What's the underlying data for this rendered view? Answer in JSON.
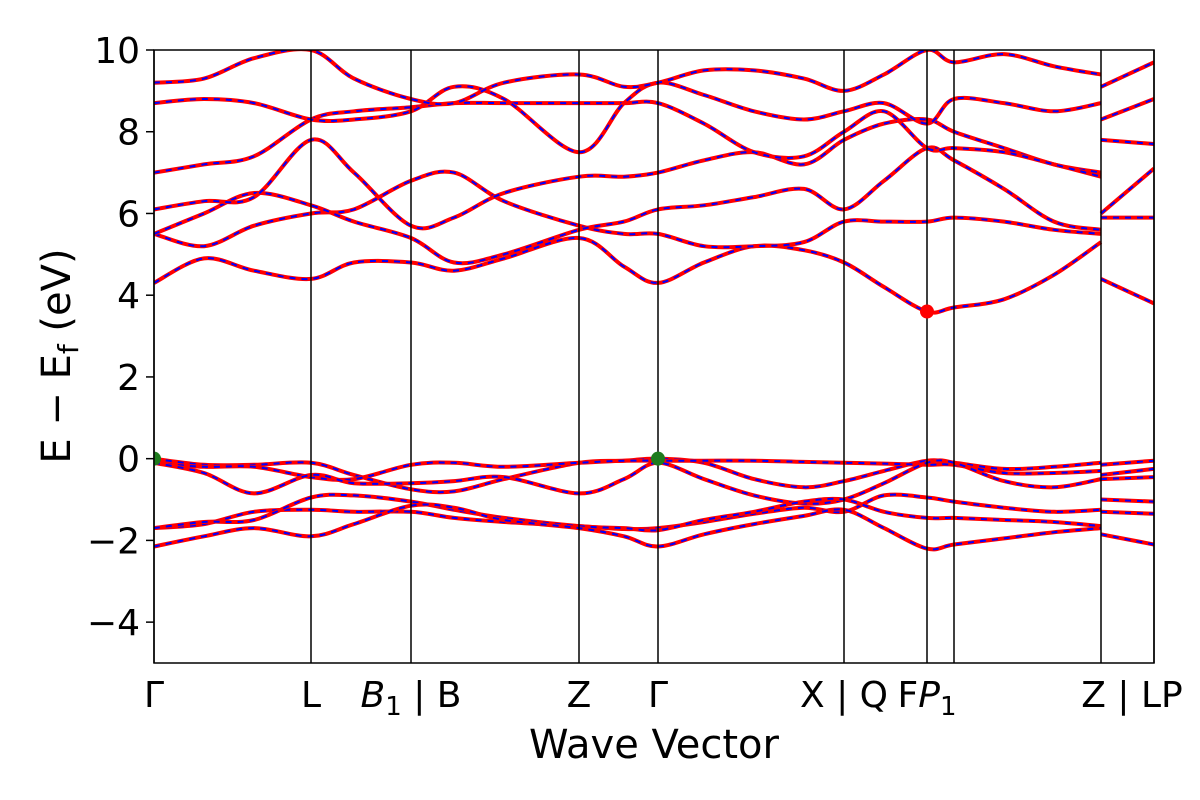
{
  "chart_data": {
    "type": "line",
    "xlabel": "Wave Vector",
    "ylabel": "E − E_f (eV)",
    "ylabel_main": "E − E",
    "ylabel_sub": "f",
    "ylabel_tail": " (eV)",
    "ylim": [
      -5,
      10
    ],
    "yticks": [
      -4,
      -2,
      0,
      2,
      4,
      6,
      8,
      10
    ],
    "xlim": [
      0,
      1
    ],
    "grid": false,
    "legend": "none",
    "kpoints": [
      {
        "x": 0.0,
        "label": "Γ"
      },
      {
        "x": 0.157,
        "label": "L"
      },
      {
        "x": 0.257,
        "label": "B1 | B",
        "sym": "B",
        "sub": "1",
        "tail": " | B"
      },
      {
        "x": 0.425,
        "label": "Z"
      },
      {
        "x": 0.504,
        "label": "Γ"
      },
      {
        "x": 0.69,
        "label": "X | Q"
      },
      {
        "x": 0.773,
        "label": "FP1",
        "pre": "F",
        "sym": "P",
        "sub": "1"
      },
      {
        "x": 0.8,
        "label": ""
      },
      {
        "x": 0.947,
        "label": "Z | LP",
        "label_x": 0.978
      },
      {
        "x": 1.0,
        "label": ""
      }
    ],
    "styles": {
      "line_color": "#ff0000",
      "dash_color": "#0000ff"
    },
    "markers": [
      {
        "x": 0.0,
        "y": 0.0,
        "color": "#1e7b1e",
        "role": "VBM"
      },
      {
        "x": 0.504,
        "y": 0.0,
        "color": "#1e7b1e",
        "role": "VBM"
      },
      {
        "x": 0.773,
        "y": 3.6,
        "color": "#ff0000",
        "role": "CBM"
      }
    ],
    "series": [
      {
        "x": [
          0,
          0.05,
          0.1,
          0.157,
          0.2,
          0.257,
          0.3,
          0.35,
          0.425,
          0.47,
          0.504,
          0.55,
          0.6,
          0.65,
          0.69,
          0.73,
          0.773,
          0.8,
          0.85,
          0.9,
          0.947
        ],
        "y": [
          4.3,
          4.9,
          4.6,
          4.4,
          4.8,
          4.8,
          4.6,
          4.9,
          5.4,
          4.7,
          4.3,
          4.8,
          5.2,
          5.1,
          4.8,
          4.2,
          3.6,
          3.7,
          3.9,
          4.5,
          5.3
        ]
      },
      {
        "x": [
          0.947,
          1.0
        ],
        "y": [
          4.4,
          3.8
        ]
      },
      {
        "x": [
          0,
          0.05,
          0.1,
          0.157,
          0.2,
          0.257,
          0.3,
          0.35,
          0.425,
          0.47,
          0.504,
          0.55,
          0.6,
          0.65,
          0.69,
          0.73,
          0.773,
          0.8,
          0.85,
          0.9,
          0.947
        ],
        "y": [
          5.5,
          5.2,
          5.7,
          6.0,
          6.1,
          6.8,
          7.0,
          6.3,
          5.7,
          5.5,
          5.5,
          5.2,
          5.2,
          5.3,
          5.8,
          5.8,
          5.8,
          5.9,
          5.8,
          5.6,
          5.5
        ]
      },
      {
        "x": [
          0.947,
          1.0
        ],
        "y": [
          5.9,
          5.9
        ]
      },
      {
        "x": [
          0,
          0.05,
          0.1,
          0.157,
          0.2,
          0.257,
          0.3,
          0.35,
          0.425,
          0.47,
          0.504,
          0.55,
          0.6,
          0.65,
          0.69,
          0.73,
          0.773,
          0.8,
          0.85,
          0.9,
          0.947
        ],
        "y": [
          5.5,
          6.0,
          6.5,
          6.2,
          5.8,
          5.4,
          4.8,
          5.0,
          5.6,
          5.8,
          6.1,
          6.2,
          6.4,
          6.6,
          6.1,
          6.8,
          7.6,
          7.3,
          6.6,
          5.8,
          5.6
        ]
      },
      {
        "x": [
          0.947,
          1.0
        ],
        "y": [
          6.0,
          7.1
        ]
      },
      {
        "x": [
          0,
          0.05,
          0.1,
          0.157,
          0.2,
          0.257,
          0.3,
          0.35,
          0.425,
          0.47,
          0.504,
          0.55,
          0.6,
          0.65,
          0.69,
          0.73,
          0.773,
          0.8,
          0.85,
          0.9,
          0.947
        ],
        "y": [
          6.1,
          6.3,
          6.4,
          7.8,
          7.0,
          5.7,
          5.9,
          6.5,
          6.9,
          6.9,
          7.0,
          7.3,
          7.5,
          7.2,
          7.8,
          8.2,
          8.3,
          8.0,
          7.6,
          7.2,
          7.0
        ]
      },
      {
        "x": [
          0.947,
          1.0
        ],
        "y": [
          7.8,
          7.7
        ]
      },
      {
        "x": [
          0,
          0.05,
          0.1,
          0.157,
          0.2,
          0.257,
          0.3,
          0.35,
          0.425,
          0.47,
          0.504,
          0.55,
          0.6,
          0.65,
          0.69,
          0.73,
          0.773,
          0.8,
          0.85,
          0.9,
          0.947
        ],
        "y": [
          7.0,
          7.2,
          7.4,
          8.3,
          8.5,
          8.6,
          8.7,
          8.7,
          8.7,
          8.7,
          8.7,
          8.2,
          7.5,
          7.4,
          8.0,
          8.5,
          7.6,
          7.6,
          7.5,
          7.2,
          6.9
        ]
      },
      {
        "x": [
          0.947,
          1.0
        ],
        "y": [
          8.3,
          8.8
        ]
      },
      {
        "x": [
          0,
          0.05,
          0.1,
          0.157,
          0.2,
          0.257,
          0.3,
          0.35,
          0.425,
          0.47,
          0.504,
          0.55,
          0.6,
          0.65,
          0.69,
          0.73,
          0.773,
          0.8,
          0.85,
          0.9,
          0.947
        ],
        "y": [
          8.7,
          8.8,
          8.7,
          8.3,
          8.3,
          8.5,
          9.1,
          8.8,
          7.5,
          8.7,
          9.2,
          8.9,
          8.5,
          8.3,
          8.5,
          8.7,
          8.2,
          8.8,
          8.7,
          8.5,
          8.7
        ]
      },
      {
        "x": [
          0.947,
          1.0
        ],
        "y": [
          9.1,
          9.7
        ]
      },
      {
        "x": [
          0,
          0.05,
          0.1,
          0.157,
          0.2,
          0.257,
          0.3,
          0.35,
          0.425,
          0.47,
          0.504,
          0.55,
          0.6,
          0.65,
          0.69,
          0.73,
          0.773,
          0.8,
          0.85,
          0.9,
          0.947
        ],
        "y": [
          9.2,
          9.3,
          9.8,
          10.0,
          9.3,
          8.8,
          8.7,
          9.2,
          9.4,
          9.1,
          9.2,
          9.5,
          9.5,
          9.3,
          9.0,
          9.4,
          10.0,
          9.7,
          9.9,
          9.6,
          9.4
        ]
      },
      {
        "x": [
          0,
          0.05,
          0.1,
          0.157,
          0.2,
          0.257,
          0.3,
          0.35,
          0.425,
          0.47,
          0.504,
          0.55,
          0.6,
          0.65,
          0.69,
          0.73,
          0.773,
          0.8,
          0.85,
          0.9,
          0.947
        ],
        "y": [
          0.0,
          -0.15,
          -0.15,
          -0.1,
          -0.4,
          -0.75,
          -0.8,
          -0.5,
          -0.1,
          -0.05,
          0.0,
          -0.1,
          -0.5,
          -0.7,
          -0.55,
          -0.3,
          -0.05,
          -0.1,
          -0.25,
          -0.2,
          -0.1
        ]
      },
      {
        "x": [
          0.947,
          1.0
        ],
        "y": [
          -0.15,
          -0.05
        ]
      },
      {
        "x": [
          0,
          0.05,
          0.1,
          0.157,
          0.2,
          0.257,
          0.3,
          0.35,
          0.425,
          0.47,
          0.504,
          0.55,
          0.6,
          0.65,
          0.69,
          0.73,
          0.773,
          0.8,
          0.85,
          0.9,
          0.947
        ],
        "y": [
          -0.1,
          -0.2,
          -0.2,
          -0.45,
          -0.5,
          -0.15,
          -0.1,
          -0.2,
          -0.1,
          -0.05,
          -0.05,
          -0.05,
          -0.05,
          -0.08,
          -0.1,
          -0.12,
          -0.15,
          -0.15,
          -0.35,
          -0.35,
          -0.3
        ]
      },
      {
        "x": [
          0.947,
          1.0
        ],
        "y": [
          -0.4,
          -0.25
        ]
      },
      {
        "x": [
          0,
          0.05,
          0.1,
          0.157,
          0.2,
          0.257,
          0.3,
          0.35,
          0.425,
          0.47,
          0.504,
          0.55,
          0.6,
          0.65,
          0.69,
          0.73,
          0.773,
          0.8,
          0.85,
          0.9,
          0.947
        ],
        "y": [
          -0.1,
          -0.35,
          -0.85,
          -0.4,
          -0.6,
          -0.6,
          -0.55,
          -0.45,
          -0.85,
          -0.5,
          -0.1,
          -0.5,
          -0.9,
          -1.1,
          -1.0,
          -0.6,
          -0.1,
          -0.1,
          -0.55,
          -0.7,
          -0.5
        ]
      },
      {
        "x": [
          0.947,
          1.0
        ],
        "y": [
          -0.5,
          -0.45
        ]
      },
      {
        "x": [
          0,
          0.05,
          0.1,
          0.157,
          0.2,
          0.257,
          0.3,
          0.35,
          0.425,
          0.47,
          0.504,
          0.55,
          0.6,
          0.65,
          0.69,
          0.73,
          0.773,
          0.8,
          0.85,
          0.9,
          0.947
        ],
        "y": [
          -1.7,
          -1.6,
          -1.3,
          -1.25,
          -1.3,
          -1.3,
          -1.45,
          -1.55,
          -1.65,
          -1.72,
          -1.7,
          -1.55,
          -1.35,
          -1.2,
          -1.3,
          -0.9,
          -0.95,
          -1.05,
          -1.2,
          -1.3,
          -1.25
        ]
      },
      {
        "x": [
          0.947,
          1.0
        ],
        "y": [
          -1.3,
          -1.35
        ]
      },
      {
        "x": [
          0,
          0.05,
          0.1,
          0.157,
          0.2,
          0.257,
          0.3,
          0.35,
          0.425,
          0.47,
          0.504,
          0.55,
          0.6,
          0.65,
          0.69,
          0.73,
          0.773,
          0.8,
          0.85,
          0.9,
          0.947
        ],
        "y": [
          -1.7,
          -1.55,
          -1.5,
          -0.95,
          -0.9,
          -1.05,
          -1.25,
          -1.45,
          -1.65,
          -1.7,
          -1.75,
          -1.5,
          -1.3,
          -1.05,
          -1.0,
          -1.3,
          -1.45,
          -1.45,
          -1.5,
          -1.55,
          -1.65
        ]
      },
      {
        "x": [
          0.947,
          1.0
        ],
        "y": [
          -1.0,
          -1.05
        ]
      },
      {
        "x": [
          0,
          0.05,
          0.1,
          0.157,
          0.2,
          0.257,
          0.3,
          0.35,
          0.425,
          0.47,
          0.504,
          0.55,
          0.6,
          0.65,
          0.69,
          0.73,
          0.773,
          0.8,
          0.85,
          0.9,
          0.947
        ],
        "y": [
          -2.15,
          -1.9,
          -1.7,
          -1.9,
          -1.6,
          -1.15,
          -1.2,
          -1.5,
          -1.7,
          -1.9,
          -2.15,
          -1.85,
          -1.6,
          -1.4,
          -1.25,
          -1.7,
          -2.2,
          -2.1,
          -1.95,
          -1.8,
          -1.7
        ]
      },
      {
        "x": [
          0.947,
          1.0
        ],
        "y": [
          -1.85,
          -2.1
        ]
      }
    ]
  }
}
